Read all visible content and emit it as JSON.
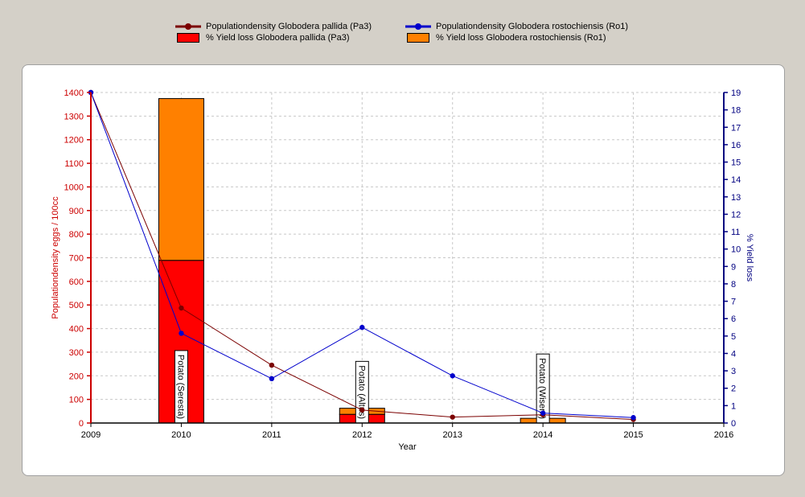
{
  "chart_data": {
    "type": "bar+line",
    "x": [
      2009,
      2010,
      2011,
      2012,
      2013,
      2014,
      2015,
      2016
    ],
    "xlabel": "Year",
    "ylabel_left": "Populationdensity eggs / 100cc",
    "ylabel_right": "% Yield loss",
    "ylim_left": [
      0,
      1400
    ],
    "ylim_right": [
      0,
      19
    ],
    "left_ticks": [
      0,
      100,
      200,
      300,
      400,
      500,
      600,
      700,
      800,
      900,
      1000,
      1100,
      1200,
      1300,
      1400
    ],
    "right_ticks": [
      0,
      1,
      2,
      3,
      4,
      5,
      6,
      7,
      8,
      9,
      10,
      11,
      12,
      13,
      14,
      15,
      16,
      17,
      18,
      19
    ],
    "grid": true,
    "legend_position": "top",
    "lines": [
      {
        "name": "Populationdensity Globodera pallida (Pa3)",
        "color": "#7b0000",
        "points": [
          [
            2009,
            1400
          ],
          [
            2010,
            487
          ],
          [
            2011,
            245
          ],
          [
            2012,
            55
          ],
          [
            2013,
            25
          ],
          [
            2014,
            35
          ],
          [
            2015,
            15
          ]
        ]
      },
      {
        "name": "Populationdensity Globodera rostochiensis (Ro1)",
        "color": "#0000cc",
        "points": [
          [
            2009,
            1400
          ],
          [
            2010,
            380
          ],
          [
            2011,
            188
          ],
          [
            2012,
            405
          ],
          [
            2013,
            200
          ],
          [
            2014,
            42
          ],
          [
            2015,
            23
          ]
        ]
      }
    ],
    "bars": [
      {
        "name": "% Yield loss Globodera pallida (Pa3)",
        "color": "#ff0000",
        "values": [
          [
            2010,
            9.35
          ],
          [
            2012,
            0.5
          ]
        ]
      },
      {
        "name": "% Yield loss Globodera rostochiensis (Ro1)",
        "color": "#ff8000",
        "values": [
          [
            2010,
            9.3
          ],
          [
            2012,
            0.35
          ],
          [
            2014,
            0.27
          ]
        ]
      }
    ],
    "annotations": [
      {
        "x": 2010,
        "text": "Potato (Seresta)"
      },
      {
        "x": 2012,
        "text": "Potato (Altus)"
      },
      {
        "x": 2014,
        "text": "Potato (Wisent)"
      }
    ]
  }
}
